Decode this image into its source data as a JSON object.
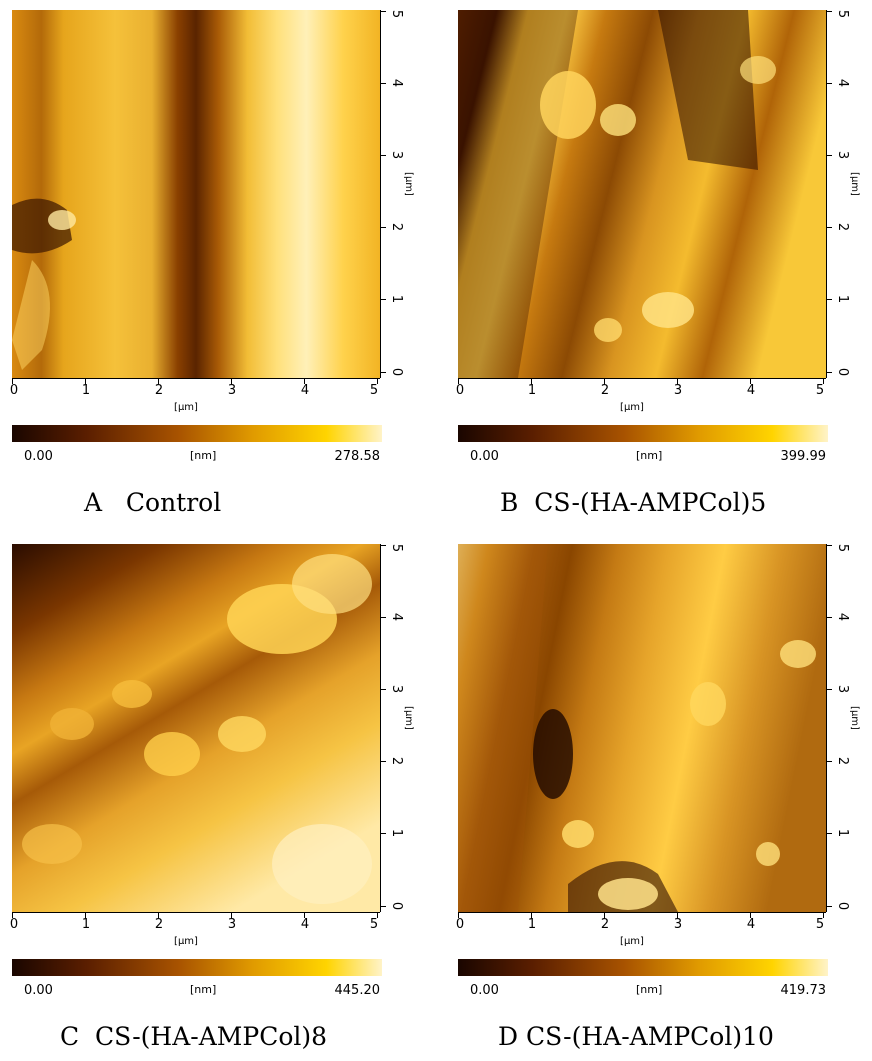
{
  "panels": [
    {
      "id": "A",
      "caption_letter": "A",
      "caption_text": "Control",
      "x_axis_ticks": [
        "0",
        "1",
        "2",
        "3",
        "4",
        "5"
      ],
      "y_axis_ticks": [
        "0",
        "1",
        "2",
        "3",
        "4",
        "5"
      ],
      "axis_unit": "[µm]",
      "colorbar_min": "0.00",
      "colorbar_max": "278.58",
      "colorbar_unit": "[nm]"
    },
    {
      "id": "B",
      "caption_letter": "B",
      "caption_text": "CS-(HA-AMPCol)5",
      "x_axis_ticks": [
        "0",
        "1",
        "2",
        "3",
        "4",
        "5"
      ],
      "y_axis_ticks": [
        "0",
        "1",
        "2",
        "3",
        "4",
        "5"
      ],
      "axis_unit": "[µm]",
      "colorbar_min": "0.00",
      "colorbar_max": "399.99",
      "colorbar_unit": "[nm]"
    },
    {
      "id": "C",
      "caption_letter": "C",
      "caption_text": "CS-(HA-AMPCol)8",
      "x_axis_ticks": [
        "0",
        "1",
        "2",
        "3",
        "4",
        "5"
      ],
      "y_axis_ticks": [
        "0",
        "1",
        "2",
        "3",
        "4",
        "5"
      ],
      "axis_unit": "[µm]",
      "colorbar_min": "0.00",
      "colorbar_max": "445.20",
      "colorbar_unit": "[nm]"
    },
    {
      "id": "D",
      "caption_letter": "D",
      "caption_text": "CS-(HA-AMPCol)10",
      "x_axis_ticks": [
        "0",
        "1",
        "2",
        "3",
        "4",
        "5"
      ],
      "y_axis_ticks": [
        "0",
        "1",
        "2",
        "3",
        "4",
        "5"
      ],
      "axis_unit": "[µm]",
      "colorbar_min": "0.00",
      "colorbar_max": "419.73",
      "colorbar_unit": "[nm]"
    }
  ],
  "colors": {
    "height_dark": "#1a0600",
    "height_mid": "#a85300",
    "height_high": "#ffd400",
    "height_max": "#fff3c8"
  }
}
